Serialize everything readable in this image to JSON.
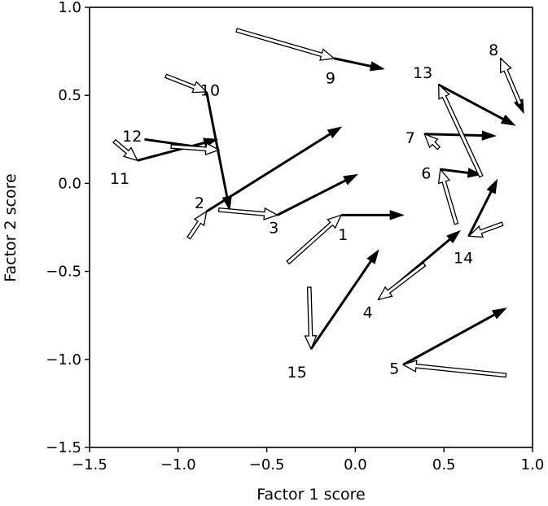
{
  "chart_data": {
    "type": "vector-field",
    "xlabel": "Factor 1 score",
    "ylabel": "Factor 2 score",
    "xlim": [
      -1.5,
      1.0
    ],
    "ylim": [
      -1.5,
      1.0
    ],
    "xticks": [
      -1.5,
      -1.0,
      -0.5,
      0.0,
      0.5,
      1.0
    ],
    "yticks": [
      -1.5,
      -1.0,
      -0.5,
      0.0,
      0.5,
      1.0
    ],
    "xtick_labels": [
      "−1.5",
      "−1.0",
      "−0.5",
      "0.0",
      "0.5",
      "1.0"
    ],
    "ytick_labels": [
      "−1.5",
      "−1.0",
      "−0.5",
      "0.0",
      "0.5",
      "1.0"
    ],
    "grid": false,
    "legend": "none",
    "series": [
      {
        "style": "hollow",
        "color": "#000000"
      },
      {
        "style": "solid",
        "color": "#000000"
      }
    ],
    "points": [
      {
        "label": "1",
        "label_pos": [
          -0.07,
          -0.29
        ],
        "hollow": {
          "from": [
            -0.38,
            -0.45
          ],
          "to": [
            -0.08,
            -0.18
          ]
        },
        "solid": {
          "from": [
            -0.08,
            -0.18
          ],
          "to": [
            0.27,
            -0.18
          ]
        }
      },
      {
        "label": "2",
        "label_pos": [
          -0.88,
          -0.11
        ],
        "hollow": {
          "from": [
            -0.94,
            -0.31
          ],
          "to": [
            -0.84,
            -0.16
          ]
        },
        "solid": {
          "from": [
            -0.84,
            -0.16
          ],
          "to": [
            -0.08,
            0.32
          ]
        }
      },
      {
        "label": "3",
        "label_pos": [
          -0.46,
          -0.25
        ],
        "hollow": {
          "from": [
            -0.77,
            -0.15
          ],
          "to": [
            -0.44,
            -0.18
          ]
        },
        "solid": {
          "from": [
            -0.44,
            -0.18
          ],
          "to": [
            0.01,
            0.05
          ]
        }
      },
      {
        "label": "4",
        "label_pos": [
          0.07,
          -0.73
        ],
        "hollow": {
          "from": [
            0.39,
            -0.46
          ],
          "to": [
            0.13,
            -0.66
          ]
        },
        "solid": {
          "from": [
            0.13,
            -0.66
          ],
          "to": [
            0.59,
            -0.27
          ]
        }
      },
      {
        "label": "5",
        "label_pos": [
          0.22,
          -1.05
        ],
        "hollow": {
          "from": [
            0.85,
            -1.09
          ],
          "to": [
            0.27,
            -1.03
          ]
        },
        "solid": {
          "from": [
            0.27,
            -1.03
          ],
          "to": [
            0.85,
            -0.71
          ]
        }
      },
      {
        "label": "6",
        "label_pos": [
          0.4,
          0.06
        ],
        "hollow": {
          "from": [
            0.57,
            -0.23
          ],
          "to": [
            0.48,
            0.08
          ]
        },
        "solid": {
          "from": [
            0.48,
            0.08
          ],
          "to": [
            0.71,
            0.05
          ]
        }
      },
      {
        "label": "7",
        "label_pos": [
          0.31,
          0.26
        ],
        "hollow": {
          "from": [
            0.47,
            0.2
          ],
          "to": [
            0.39,
            0.28
          ]
        },
        "solid": {
          "from": [
            0.39,
            0.28
          ],
          "to": [
            0.79,
            0.27
          ]
        }
      },
      {
        "label": "8",
        "label_pos": [
          0.78,
          0.76
        ],
        "hollow": {
          "from": [
            0.93,
            0.45
          ],
          "to": [
            0.82,
            0.71
          ]
        },
        "solid": {
          "from": [
            0.82,
            0.71
          ],
          "to": [
            0.95,
            0.4
          ]
        }
      },
      {
        "label": "9",
        "label_pos": [
          -0.14,
          0.6
        ],
        "hollow": {
          "from": [
            -0.67,
            0.87
          ],
          "to": [
            -0.12,
            0.71
          ]
        },
        "solid": {
          "from": [
            -0.12,
            0.71
          ],
          "to": [
            0.16,
            0.65
          ]
        }
      },
      {
        "label": "10",
        "label_pos": [
          -0.82,
          0.53
        ],
        "hollow": {
          "from": [
            -1.07,
            0.61
          ],
          "to": [
            -0.84,
            0.52
          ]
        },
        "solid": {
          "from": [
            -0.84,
            0.52
          ],
          "to": [
            -0.71,
            -0.15
          ]
        }
      },
      {
        "label": "11",
        "label_pos": [
          -1.33,
          0.03
        ],
        "hollow": {
          "from": [
            -1.36,
            0.24
          ],
          "to": [
            -1.23,
            0.13
          ]
        },
        "solid": {
          "from": [
            -1.23,
            0.13
          ],
          "to": [
            -0.78,
            0.25
          ]
        }
      },
      {
        "label": "12",
        "label_pos": [
          -1.26,
          0.27
        ],
        "hollow": {
          "from": [
            -1.04,
            0.21
          ],
          "to": [
            -0.77,
            0.19
          ]
        },
        "solid": {
          "from": [
            -1.19,
            0.25
          ],
          "to": [
            -0.77,
            0.19
          ]
        }
      },
      {
        "label": "13",
        "label_pos": [
          0.38,
          0.63
        ],
        "hollow": {
          "from": [
            0.71,
            0.04
          ],
          "to": [
            0.47,
            0.56
          ]
        },
        "solid": {
          "from": [
            0.47,
            0.56
          ],
          "to": [
            0.9,
            0.33
          ]
        }
      },
      {
        "label": "14",
        "label_pos": [
          0.61,
          -0.42
        ],
        "hollow": {
          "from": [
            0.83,
            -0.23
          ],
          "to": [
            0.64,
            -0.3
          ]
        },
        "solid": {
          "from": [
            0.64,
            -0.3
          ],
          "to": [
            0.8,
            0.02
          ]
        }
      },
      {
        "label": "15",
        "label_pos": [
          -0.33,
          -1.07
        ],
        "hollow": {
          "from": [
            -0.26,
            -0.59
          ],
          "to": [
            -0.25,
            -0.94
          ]
        },
        "solid": {
          "from": [
            -0.25,
            -0.94
          ],
          "to": [
            0.13,
            -0.38
          ]
        }
      }
    ]
  }
}
